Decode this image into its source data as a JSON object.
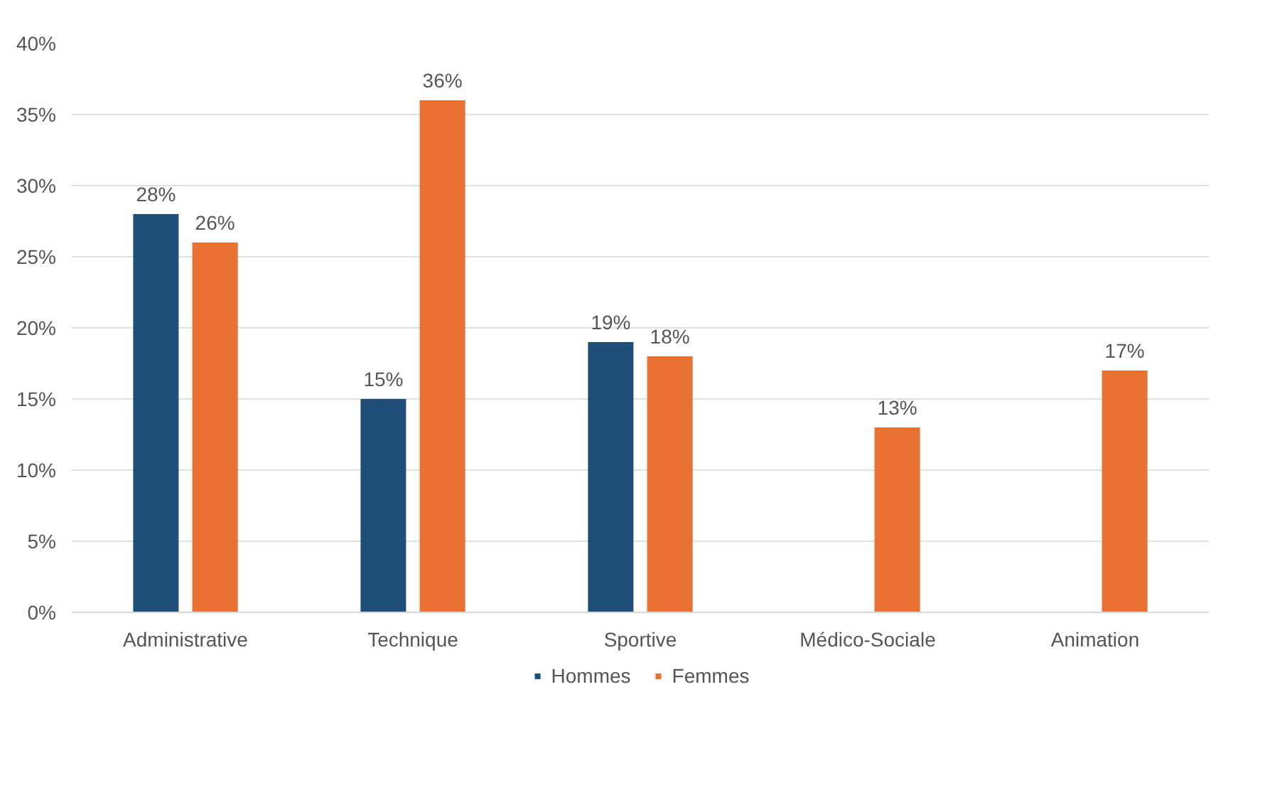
{
  "chart_data": {
    "type": "bar",
    "categories": [
      "Administrative",
      "Technique",
      "Sportive",
      "Médico-Sociale",
      "Animation"
    ],
    "series": [
      {
        "name": "Hommes",
        "color": "#1f4e79",
        "values": [
          28,
          15,
          19,
          null,
          null
        ],
        "value_labels": [
          "28%",
          "15%",
          "19%",
          null,
          null
        ]
      },
      {
        "name": "Femmes",
        "color": "#e97132",
        "values": [
          26,
          36,
          18,
          13,
          17
        ],
        "value_labels": [
          "26%",
          "36%",
          "18%",
          "13%",
          "17%"
        ]
      }
    ],
    "ylim": [
      0,
      40
    ],
    "yticks": [
      {
        "value": 0,
        "label": "0%"
      },
      {
        "value": 5,
        "label": "5%"
      },
      {
        "value": 10,
        "label": "10%"
      },
      {
        "value": 15,
        "label": "15%"
      },
      {
        "value": 20,
        "label": "20%"
      },
      {
        "value": 25,
        "label": "25%"
      },
      {
        "value": 30,
        "label": "30%"
      },
      {
        "value": 35,
        "label": "35%"
      },
      {
        "value": 40,
        "label": "40%"
      }
    ],
    "grid": "y",
    "legend": "bottom"
  }
}
